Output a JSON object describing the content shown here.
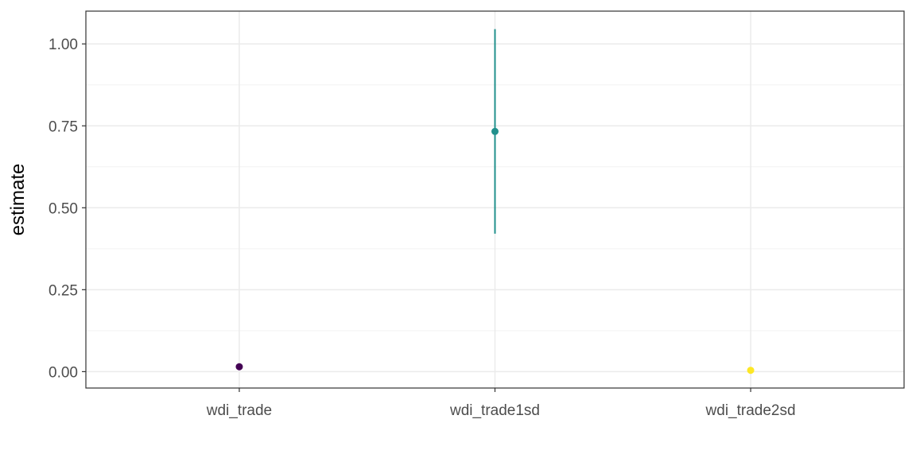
{
  "chart_data": {
    "type": "scatter",
    "xlabel": "",
    "ylabel": "estimate",
    "ylim": [
      -0.05,
      1.1
    ],
    "y_ticks": [
      0.0,
      0.25,
      0.5,
      0.75,
      1.0
    ],
    "y_tick_labels": [
      "0.00",
      "0.25",
      "0.50",
      "0.75",
      "1.00"
    ],
    "categories": [
      "wdi_trade",
      "wdi_trade1sd",
      "wdi_trade2sd"
    ],
    "points": [
      {
        "category": "wdi_trade",
        "estimate": 0.015,
        "conf_low": 0.011,
        "conf_high": 0.019,
        "color": "#440154"
      },
      {
        "category": "wdi_trade1sd",
        "estimate": 0.733,
        "conf_low": 0.421,
        "conf_high": 1.045,
        "color": "#21908C"
      },
      {
        "category": "wdi_trade2sd",
        "estimate": 0.004,
        "conf_low": 0.003,
        "conf_high": 0.005,
        "color": "#FDE725"
      }
    ],
    "grid": true,
    "legend": "none"
  }
}
